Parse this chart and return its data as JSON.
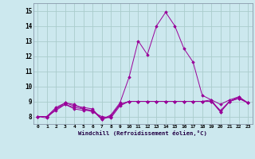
{
  "xlabel": "Windchill (Refroidissement éolien,°C)",
  "background_color": "#cce8ee",
  "grid_color": "#aacccc",
  "line_color": "#990099",
  "xlim": [
    -0.5,
    23.5
  ],
  "ylim": [
    7.5,
    15.5
  ],
  "xticks": [
    0,
    1,
    2,
    3,
    4,
    5,
    6,
    7,
    8,
    9,
    10,
    11,
    12,
    13,
    14,
    15,
    16,
    17,
    18,
    19,
    20,
    21,
    22,
    23
  ],
  "yticks": [
    8,
    9,
    10,
    11,
    12,
    13,
    14,
    15
  ],
  "series": [
    [
      8.0,
      8.0,
      8.6,
      8.9,
      8.8,
      8.5,
      8.4,
      7.8,
      8.1,
      8.9,
      10.6,
      13.0,
      12.1,
      14.0,
      14.9,
      14.0,
      12.5,
      11.6,
      9.4,
      9.1,
      8.3,
      9.0,
      9.3,
      8.9
    ],
    [
      8.0,
      7.9,
      8.5,
      8.9,
      8.7,
      8.6,
      8.5,
      7.8,
      8.0,
      8.8,
      9.0,
      9.0,
      9.0,
      9.0,
      9.0,
      9.0,
      9.0,
      9.0,
      9.0,
      9.1,
      8.8,
      9.1,
      9.3,
      8.9
    ],
    [
      8.0,
      8.0,
      8.5,
      8.8,
      8.5,
      8.4,
      8.4,
      7.9,
      8.0,
      8.8,
      9.0,
      9.0,
      9.0,
      9.0,
      9.0,
      9.0,
      9.0,
      9.0,
      9.0,
      9.0,
      8.3,
      9.0,
      9.2,
      8.9
    ],
    [
      8.0,
      8.0,
      8.4,
      8.8,
      8.6,
      8.5,
      8.3,
      8.0,
      7.9,
      8.7,
      9.0,
      9.0,
      9.0,
      9.0,
      9.0,
      9.0,
      9.0,
      9.0,
      9.0,
      9.0,
      8.4,
      9.0,
      9.2,
      8.9
    ]
  ]
}
